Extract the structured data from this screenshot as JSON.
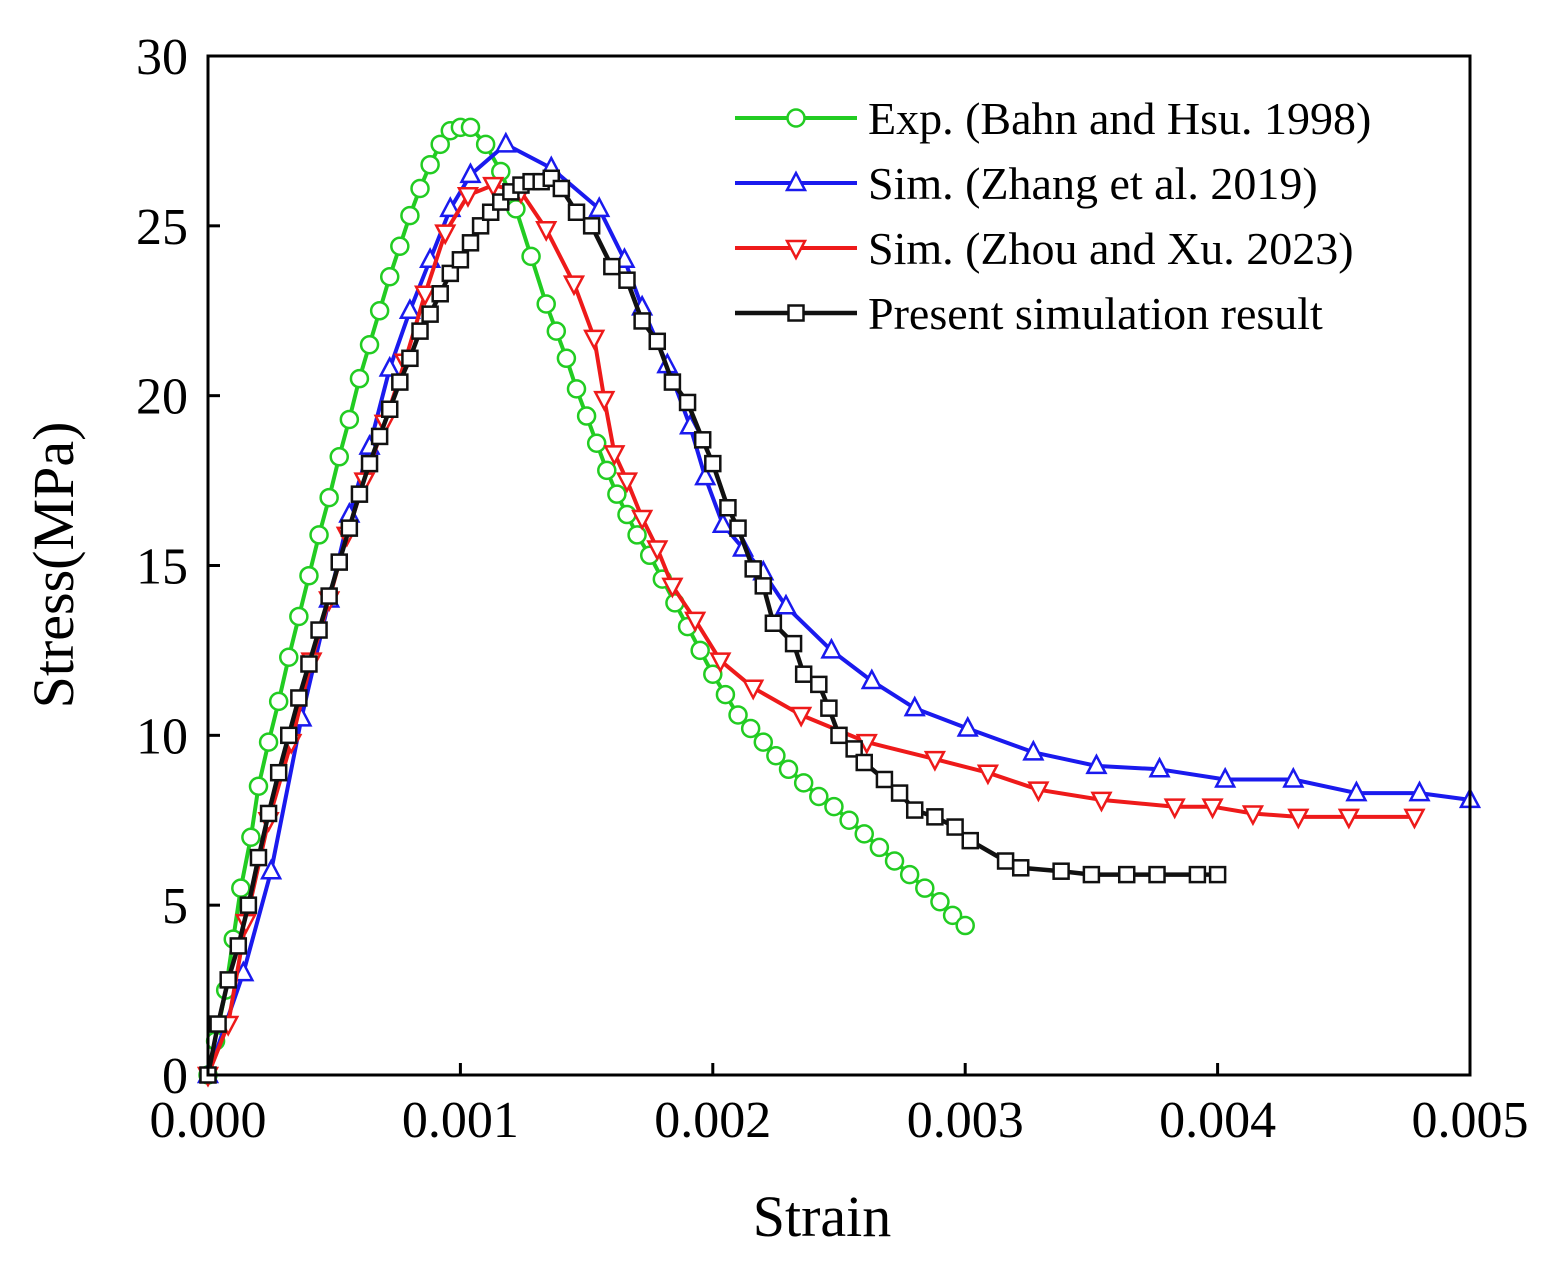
{
  "chart_data": {
    "type": "line",
    "title": "",
    "xlabel": "Strain",
    "ylabel": "Stress(MPa)",
    "xlim": [
      0,
      0.005
    ],
    "ylim": [
      0,
      30
    ],
    "xticks": [
      0,
      0.001,
      0.002,
      0.003,
      0.004,
      0.005
    ],
    "xtick_labels": [
      "0.000",
      "0.001",
      "0.002",
      "0.003",
      "0.004",
      "0.005"
    ],
    "yticks": [
      0,
      5,
      10,
      15,
      20,
      25,
      30
    ],
    "ytick_labels": [
      "0",
      "5",
      "10",
      "15",
      "20",
      "25",
      "30"
    ],
    "grid": false,
    "legend_position": "top-right",
    "series": [
      {
        "name": "Exp. (Bahn and Hsu. 1998)",
        "color": "#22cc22",
        "marker": "circle",
        "x": [
          0,
          3e-05,
          7e-05,
          0.0001,
          0.00013,
          0.00017,
          0.0002,
          0.00024,
          0.00028,
          0.00032,
          0.00036,
          0.0004,
          0.00044,
          0.00048,
          0.00052,
          0.00056,
          0.0006,
          0.00064,
          0.00068,
          0.00072,
          0.00076,
          0.0008,
          0.00084,
          0.00088,
          0.00092,
          0.00096,
          0.001,
          0.00104,
          0.0011,
          0.00116,
          0.00122,
          0.00128,
          0.00134,
          0.00138,
          0.00142,
          0.00146,
          0.0015,
          0.00154,
          0.00158,
          0.00162,
          0.00166,
          0.0017,
          0.00175,
          0.0018,
          0.00185,
          0.0019,
          0.00195,
          0.002,
          0.00205,
          0.0021,
          0.00215,
          0.0022,
          0.00225,
          0.0023,
          0.00236,
          0.00242,
          0.00248,
          0.00254,
          0.0026,
          0.00266,
          0.00272,
          0.00278,
          0.00284,
          0.0029,
          0.00295,
          0.003
        ],
        "y": [
          0,
          1,
          2.5,
          4,
          5.5,
          7,
          8.5,
          9.8,
          11,
          12.3,
          13.5,
          14.7,
          15.9,
          17,
          18.2,
          19.3,
          20.5,
          21.5,
          22.5,
          23.5,
          24.4,
          25.3,
          26.1,
          26.8,
          27.4,
          27.8,
          27.9,
          27.9,
          27.4,
          26.6,
          25.5,
          24.1,
          22.7,
          21.9,
          21.1,
          20.2,
          19.4,
          18.6,
          17.8,
          17.1,
          16.5,
          15.9,
          15.3,
          14.6,
          13.9,
          13.2,
          12.5,
          11.8,
          11.2,
          10.6,
          10.2,
          9.8,
          9.4,
          9.0,
          8.6,
          8.2,
          7.9,
          7.5,
          7.1,
          6.7,
          6.3,
          5.9,
          5.5,
          5.1,
          4.7,
          4.4
        ]
      },
      {
        "name": "Sim. (Zhang et al. 2019)",
        "color": "#1a1aee",
        "marker": "triangle-up",
        "x": [
          0,
          0.00014,
          0.00025,
          0.00037,
          0.00048,
          0.00056,
          0.00064,
          0.00072,
          0.0008,
          0.00088,
          0.00096,
          0.00104,
          0.00118,
          0.00136,
          0.00155,
          0.00165,
          0.00172,
          0.00182,
          0.00191,
          0.00197,
          0.00204,
          0.00212,
          0.0022,
          0.00229,
          0.00247,
          0.00263,
          0.0028,
          0.00301,
          0.00327,
          0.00352,
          0.00377,
          0.00403,
          0.0043,
          0.00455,
          0.0048,
          0.005
        ],
        "y": [
          0,
          3,
          6,
          10.5,
          14,
          16.5,
          18.5,
          20.8,
          22.5,
          24,
          25.5,
          26.5,
          27.4,
          26.7,
          25.5,
          24,
          22.6,
          20.9,
          19.1,
          17.6,
          16.2,
          15.5,
          14.8,
          13.8,
          12.5,
          11.6,
          10.8,
          10.2,
          9.5,
          9.1,
          9.0,
          8.7,
          8.7,
          8.3,
          8.3,
          8.1
        ]
      },
      {
        "name": "Sim. (Zhou and Xu. 2023)",
        "color": "#ee1a1a",
        "marker": "triangle-down",
        "x": [
          0,
          8e-05,
          0.00015,
          0.00024,
          0.00033,
          0.00041,
          0.00048,
          0.00055,
          0.00062,
          0.0007,
          0.00078,
          0.00086,
          0.00094,
          0.00103,
          0.00113,
          0.00124,
          0.00134,
          0.00145,
          0.00153,
          0.00157,
          0.00161,
          0.00166,
          0.00172,
          0.00178,
          0.00184,
          0.00193,
          0.00203,
          0.00216,
          0.00235,
          0.00261,
          0.00288,
          0.00309,
          0.00329,
          0.00354,
          0.00383,
          0.00398,
          0.00414,
          0.00432,
          0.00452,
          0.00478
        ],
        "y": [
          0,
          1.5,
          4.5,
          7.5,
          9.8,
          12.2,
          14,
          15.9,
          17.5,
          19.2,
          21,
          23,
          24.8,
          25.9,
          26.2,
          26,
          24.9,
          23.3,
          21.7,
          19.9,
          18.3,
          17.5,
          16.4,
          15.5,
          14.4,
          13.4,
          12.2,
          11.4,
          10.6,
          9.8,
          9.3,
          8.9,
          8.4,
          8.1,
          7.9,
          7.9,
          7.7,
          7.6,
          7.6,
          7.6
        ]
      },
      {
        "name": "Present simulation result",
        "color": "#111111",
        "marker": "square",
        "x": [
          0,
          4e-05,
          8e-05,
          0.00012,
          0.00016,
          0.0002,
          0.00024,
          0.00028,
          0.00032,
          0.00036,
          0.0004,
          0.00044,
          0.00048,
          0.00052,
          0.00056,
          0.0006,
          0.00064,
          0.00068,
          0.00072,
          0.00076,
          0.0008,
          0.00084,
          0.00088,
          0.00092,
          0.00096,
          0.001,
          0.00104,
          0.00108,
          0.00112,
          0.00116,
          0.0012,
          0.00124,
          0.00128,
          0.00132,
          0.00136,
          0.0014,
          0.00146,
          0.00152,
          0.0016,
          0.00166,
          0.00172,
          0.00178,
          0.00184,
          0.0019,
          0.00196,
          0.002,
          0.00206,
          0.0021,
          0.00216,
          0.0022,
          0.00224,
          0.00232,
          0.00236,
          0.00242,
          0.00246,
          0.0025,
          0.00256,
          0.0026,
          0.00268,
          0.00274,
          0.0028,
          0.00288,
          0.00296,
          0.00302,
          0.00316,
          0.00322,
          0.00338,
          0.0035,
          0.00364,
          0.00376,
          0.00392,
          0.004
        ],
        "y": [
          0,
          1.5,
          2.8,
          3.8,
          5.0,
          6.4,
          7.7,
          8.9,
          10.0,
          11.1,
          12.1,
          13.1,
          14.1,
          15.1,
          16.1,
          17.1,
          18.0,
          18.8,
          19.6,
          20.4,
          21.1,
          21.9,
          22.4,
          23.0,
          23.6,
          24.0,
          24.5,
          25.0,
          25.4,
          25.7,
          26.0,
          26.2,
          26.3,
          26.3,
          26.4,
          26.1,
          25.4,
          25.0,
          23.8,
          23.4,
          22.2,
          21.6,
          20.4,
          19.8,
          18.7,
          18.0,
          16.7,
          16.1,
          14.9,
          14.4,
          13.3,
          12.7,
          11.8,
          11.5,
          10.8,
          10.0,
          9.6,
          9.2,
          8.7,
          8.3,
          7.8,
          7.6,
          7.3,
          6.9,
          6.3,
          6.1,
          6.0,
          5.9,
          5.9,
          5.9,
          5.9,
          5.9
        ]
      }
    ]
  }
}
